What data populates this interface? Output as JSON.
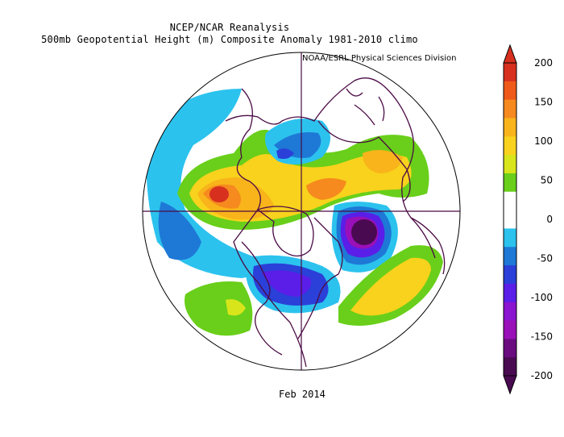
{
  "title": {
    "line1": "NCEP/NCAR Reanalysis",
    "line2": "500mb Geopotential Height (m) Composite Anomaly 1981-2010 climo"
  },
  "credit": "NOAA/ESRL Physical Sciences Division",
  "date_label": "Feb 2014",
  "colorbar": {
    "levels": [
      {
        "value": "200",
        "color": "#d7301f"
      },
      {
        "value": "150",
        "color": "#f68a1e"
      },
      {
        "value": "100",
        "color": "#f8d21c"
      },
      {
        "value": "50",
        "color": "#69cf1a"
      },
      {
        "value": "0",
        "color": "#ffffff"
      },
      {
        "value": "-50",
        "color": "#1e78d6"
      },
      {
        "value": "-100",
        "color": "#5a1ee8"
      },
      {
        "value": "-150",
        "color": "#9a10b8"
      },
      {
        "value": "-200",
        "color": "#4a0a52"
      }
    ],
    "band_colors": [
      "#d7301f",
      "#ef5a1a",
      "#f68a1e",
      "#f8b41a",
      "#f8d21c",
      "#d8e51a",
      "#69cf1a",
      "#ffffff",
      "#ffffff",
      "#2cc2ee",
      "#1e78d6",
      "#2a40d8",
      "#5a1ee8",
      "#8a14d0",
      "#9a10b8",
      "#6a0c80",
      "#4a0a52"
    ]
  }
}
